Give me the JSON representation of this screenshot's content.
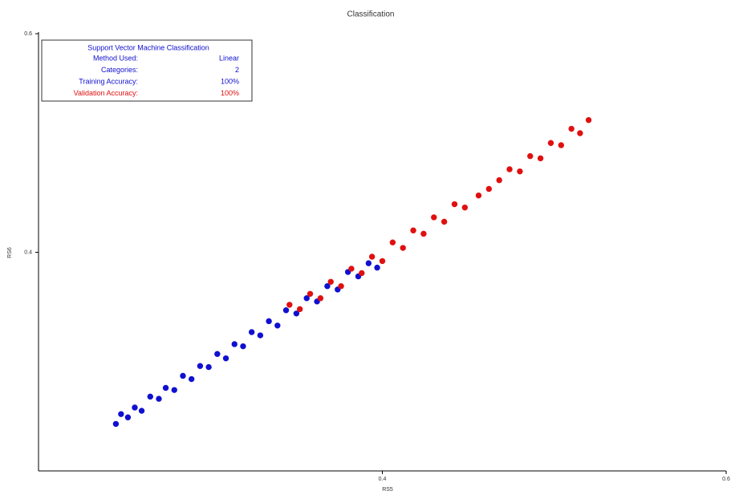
{
  "chart_data": {
    "type": "scatter",
    "title": "Classification",
    "x_label": "RS5",
    "y_label": "RS6",
    "xlim": [
      0.2,
      0.6
    ],
    "ylim": [
      0.2,
      0.6
    ],
    "xticks": [
      0.4,
      0.6
    ],
    "yticks": [
      0.4,
      0.6
    ],
    "info_box": {
      "title": "Support Vector Machine Classification",
      "rows": [
        [
          "Method Used:",
          "Linear"
        ],
        [
          "Categories:",
          "2"
        ],
        [
          "Training Accuracy:",
          "100%"
        ],
        [
          "Validation Accuracy:",
          "100%"
        ]
      ]
    },
    "series": [
      {
        "name": "Training",
        "color": "#1010d0",
        "x": [
          0.245,
          0.248,
          0.252,
          0.256,
          0.26,
          0.265,
          0.27,
          0.274,
          0.279,
          0.284,
          0.289,
          0.294,
          0.299,
          0.304,
          0.309,
          0.314,
          0.319,
          0.324,
          0.329,
          0.334,
          0.339,
          0.344,
          0.35,
          0.356,
          0.362,
          0.368,
          0.374,
          0.38,
          0.386,
          0.392,
          0.397
        ],
        "values": [
          0.243,
          0.252,
          0.249,
          0.258,
          0.255,
          0.268,
          0.266,
          0.276,
          0.274,
          0.287,
          0.284,
          0.296,
          0.295,
          0.307,
          0.303,
          0.316,
          0.314,
          0.327,
          0.324,
          0.337,
          0.333,
          0.347,
          0.344,
          0.358,
          0.355,
          0.369,
          0.366,
          0.382,
          0.378,
          0.39,
          0.386
        ]
      },
      {
        "name": "Validation",
        "color": "#e01010",
        "x": [
          0.346,
          0.352,
          0.358,
          0.364,
          0.37,
          0.376,
          0.382,
          0.388,
          0.394,
          0.4,
          0.406,
          0.412,
          0.418,
          0.424,
          0.43,
          0.436,
          0.442,
          0.448,
          0.456,
          0.462,
          0.468,
          0.474,
          0.48,
          0.486,
          0.492,
          0.498,
          0.504,
          0.51,
          0.515,
          0.52
        ],
        "values": [
          0.352,
          0.348,
          0.362,
          0.358,
          0.373,
          0.369,
          0.385,
          0.381,
          0.396,
          0.392,
          0.409,
          0.404,
          0.42,
          0.417,
          0.432,
          0.428,
          0.444,
          0.441,
          0.452,
          0.458,
          0.466,
          0.476,
          0.474,
          0.488,
          0.486,
          0.5,
          0.498,
          0.513,
          0.509,
          0.521
        ]
      }
    ]
  }
}
